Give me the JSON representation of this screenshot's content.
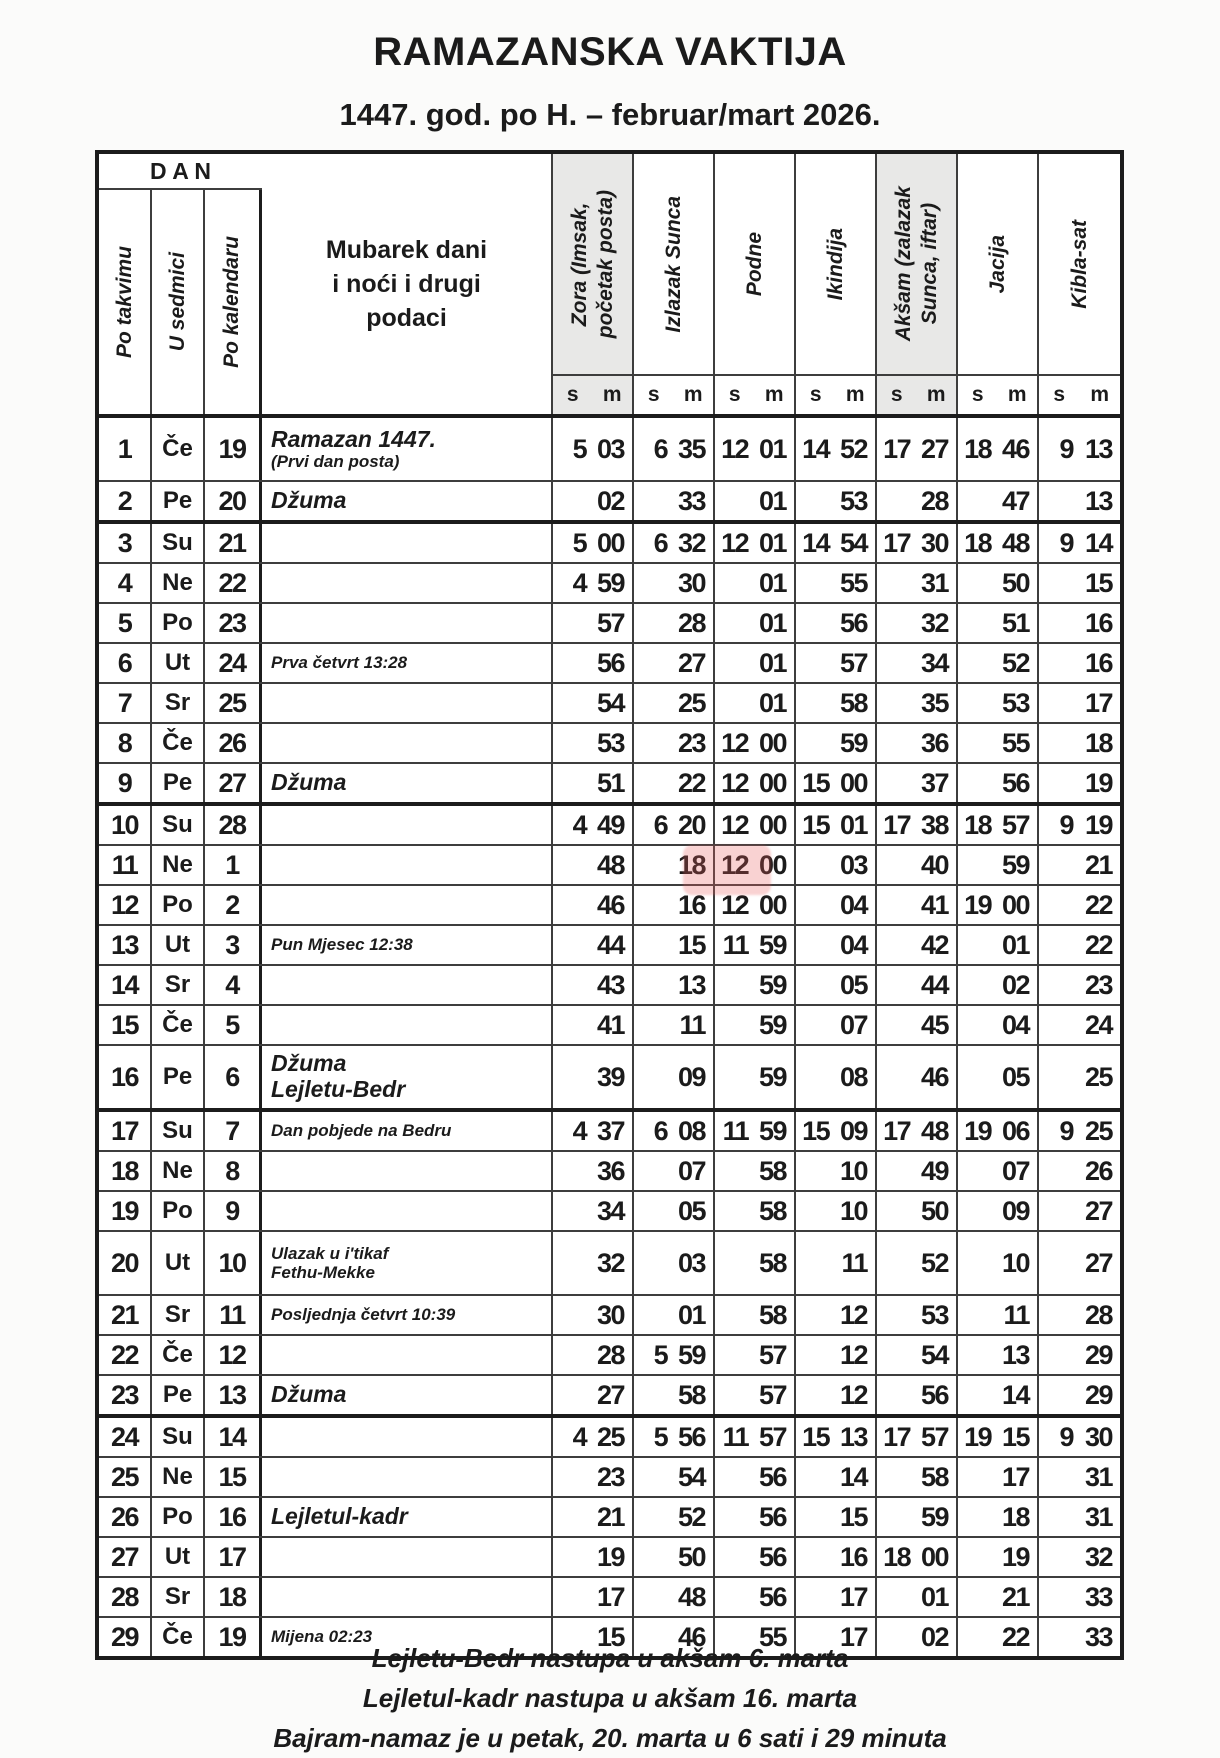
{
  "title": "RAMAZANSKA VAKTIJA",
  "subtitle": "1447. god. po H. – februar/mart 2026.",
  "colors": {
    "shade": "#e8e8e7",
    "border_thin": "#3d3d3d",
    "border_thick": "#1c1c1c",
    "watermark": "rgba(233,94,94,0.28)"
  },
  "table": {
    "dan_header": "D A N",
    "day_cols": [
      "Po takvimu",
      "U sedmici",
      "Po kalendaru"
    ],
    "notes_header": "Mubarek dani\ni noći i drugi\npodaci",
    "time_cols": [
      "Zora (Imsak,\npočetak posta)",
      "Izlazak Sunca",
      "Podne",
      "Ikindija",
      "Akšam (zalazak\nSunca, iftar)",
      "Jacija",
      "Kibla-sat"
    ],
    "shaded_time_cols": [
      0,
      4
    ],
    "sm_labels": [
      "s",
      "m"
    ],
    "rows": [
      {
        "d": "1",
        "wd": "Če",
        "cal": "19",
        "notes": [
          {
            "t": "Ramazan 1447.",
            "s": "nb"
          },
          {
            "t": "(Prvi dan posta)",
            "s": "ns"
          }
        ],
        "times": [
          [
            "5",
            "03"
          ],
          [
            "6",
            "35"
          ],
          [
            "12",
            "01"
          ],
          [
            "14",
            "52"
          ],
          [
            "17",
            "27"
          ],
          [
            "18",
            "46"
          ],
          [
            "9",
            "13"
          ]
        ],
        "tall": true
      },
      {
        "d": "2",
        "wd": "Pe",
        "cal": "20",
        "notes": [
          {
            "t": "Džuma",
            "s": "nb"
          }
        ],
        "times": [
          [
            "",
            "02"
          ],
          [
            "",
            "33"
          ],
          [
            "",
            "01"
          ],
          [
            "",
            "53"
          ],
          [
            "",
            "28"
          ],
          [
            "",
            "47"
          ],
          [
            "",
            "13"
          ]
        ]
      },
      {
        "d": "3",
        "wd": "Su",
        "cal": "21",
        "notes": [],
        "times": [
          [
            "5",
            "00"
          ],
          [
            "6",
            "32"
          ],
          [
            "12",
            "01"
          ],
          [
            "14",
            "54"
          ],
          [
            "17",
            "30"
          ],
          [
            "18",
            "48"
          ],
          [
            "9",
            "14"
          ]
        ],
        "week": true
      },
      {
        "d": "4",
        "wd": "Ne",
        "cal": "22",
        "notes": [],
        "times": [
          [
            "4",
            "59"
          ],
          [
            "",
            "30"
          ],
          [
            "",
            "01"
          ],
          [
            "",
            "55"
          ],
          [
            "",
            "31"
          ],
          [
            "",
            "50"
          ],
          [
            "",
            "15"
          ]
        ]
      },
      {
        "d": "5",
        "wd": "Po",
        "cal": "23",
        "notes": [],
        "times": [
          [
            "",
            "57"
          ],
          [
            "",
            "28"
          ],
          [
            "",
            "01"
          ],
          [
            "",
            "56"
          ],
          [
            "",
            "32"
          ],
          [
            "",
            "51"
          ],
          [
            "",
            "16"
          ]
        ]
      },
      {
        "d": "6",
        "wd": "Ut",
        "cal": "24",
        "notes": [
          {
            "t": "Prva četvrt 13:28",
            "s": "ns"
          }
        ],
        "times": [
          [
            "",
            "56"
          ],
          [
            "",
            "27"
          ],
          [
            "",
            "01"
          ],
          [
            "",
            "57"
          ],
          [
            "",
            "34"
          ],
          [
            "",
            "52"
          ],
          [
            "",
            "16"
          ]
        ]
      },
      {
        "d": "7",
        "wd": "Sr",
        "cal": "25",
        "notes": [],
        "times": [
          [
            "",
            "54"
          ],
          [
            "",
            "25"
          ],
          [
            "",
            "01"
          ],
          [
            "",
            "58"
          ],
          [
            "",
            "35"
          ],
          [
            "",
            "53"
          ],
          [
            "",
            "17"
          ]
        ]
      },
      {
        "d": "8",
        "wd": "Če",
        "cal": "26",
        "notes": [],
        "times": [
          [
            "",
            "53"
          ],
          [
            "",
            "23"
          ],
          [
            "12",
            "00"
          ],
          [
            "",
            "59"
          ],
          [
            "",
            "36"
          ],
          [
            "",
            "55"
          ],
          [
            "",
            "18"
          ]
        ]
      },
      {
        "d": "9",
        "wd": "Pe",
        "cal": "27",
        "notes": [
          {
            "t": "Džuma",
            "s": "nb"
          }
        ],
        "times": [
          [
            "",
            "51"
          ],
          [
            "",
            "22"
          ],
          [
            "12",
            "00"
          ],
          [
            "15",
            "00"
          ],
          [
            "",
            "37"
          ],
          [
            "",
            "56"
          ],
          [
            "",
            "19"
          ]
        ]
      },
      {
        "d": "10",
        "wd": "Su",
        "cal": "28",
        "notes": [],
        "times": [
          [
            "4",
            "49"
          ],
          [
            "6",
            "20"
          ],
          [
            "12",
            "00"
          ],
          [
            "15",
            "01"
          ],
          [
            "17",
            "38"
          ],
          [
            "18",
            "57"
          ],
          [
            "9",
            "19"
          ]
        ],
        "week": true
      },
      {
        "d": "11",
        "wd": "Ne",
        "cal": "1",
        "notes": [],
        "times": [
          [
            "",
            "48"
          ],
          [
            "",
            "18"
          ],
          [
            "12",
            "00"
          ],
          [
            "",
            "03"
          ],
          [
            "",
            "40"
          ],
          [
            "",
            "59"
          ],
          [
            "",
            "21"
          ]
        ]
      },
      {
        "d": "12",
        "wd": "Po",
        "cal": "2",
        "notes": [],
        "times": [
          [
            "",
            "46"
          ],
          [
            "",
            "16"
          ],
          [
            "12",
            "00"
          ],
          [
            "",
            "04"
          ],
          [
            "",
            "41"
          ],
          [
            "19",
            "00"
          ],
          [
            "",
            "22"
          ]
        ]
      },
      {
        "d": "13",
        "wd": "Ut",
        "cal": "3",
        "notes": [
          {
            "t": "Pun Mjesec 12:38",
            "s": "ns"
          }
        ],
        "times": [
          [
            "",
            "44"
          ],
          [
            "",
            "15"
          ],
          [
            "11",
            "59"
          ],
          [
            "",
            "04"
          ],
          [
            "",
            "42"
          ],
          [
            "",
            "01"
          ],
          [
            "",
            "22"
          ]
        ]
      },
      {
        "d": "14",
        "wd": "Sr",
        "cal": "4",
        "notes": [],
        "times": [
          [
            "",
            "43"
          ],
          [
            "",
            "13"
          ],
          [
            "",
            "59"
          ],
          [
            "",
            "05"
          ],
          [
            "",
            "44"
          ],
          [
            "",
            "02"
          ],
          [
            "",
            "23"
          ]
        ]
      },
      {
        "d": "15",
        "wd": "Če",
        "cal": "5",
        "notes": [],
        "times": [
          [
            "",
            "41"
          ],
          [
            "",
            "11"
          ],
          [
            "",
            "59"
          ],
          [
            "",
            "07"
          ],
          [
            "",
            "45"
          ],
          [
            "",
            "04"
          ],
          [
            "",
            "24"
          ]
        ]
      },
      {
        "d": "16",
        "wd": "Pe",
        "cal": "6",
        "notes": [
          {
            "t": "Džuma",
            "s": "nb"
          },
          {
            "t": "Lejletu-Bedr",
            "s": "nb"
          }
        ],
        "times": [
          [
            "",
            "39"
          ],
          [
            "",
            "09"
          ],
          [
            "",
            "59"
          ],
          [
            "",
            "08"
          ],
          [
            "",
            "46"
          ],
          [
            "",
            "05"
          ],
          [
            "",
            "25"
          ]
        ],
        "tall": true
      },
      {
        "d": "17",
        "wd": "Su",
        "cal": "7",
        "notes": [
          {
            "t": "Dan pobjede na Bedru",
            "s": "ns"
          }
        ],
        "times": [
          [
            "4",
            "37"
          ],
          [
            "6",
            "08"
          ],
          [
            "11",
            "59"
          ],
          [
            "15",
            "09"
          ],
          [
            "17",
            "48"
          ],
          [
            "19",
            "06"
          ],
          [
            "9",
            "25"
          ]
        ],
        "week": true
      },
      {
        "d": "18",
        "wd": "Ne",
        "cal": "8",
        "notes": [],
        "times": [
          [
            "",
            "36"
          ],
          [
            "",
            "07"
          ],
          [
            "",
            "58"
          ],
          [
            "",
            "10"
          ],
          [
            "",
            "49"
          ],
          [
            "",
            "07"
          ],
          [
            "",
            "26"
          ]
        ]
      },
      {
        "d": "19",
        "wd": "Po",
        "cal": "9",
        "notes": [],
        "times": [
          [
            "",
            "34"
          ],
          [
            "",
            "05"
          ],
          [
            "",
            "58"
          ],
          [
            "",
            "10"
          ],
          [
            "",
            "50"
          ],
          [
            "",
            "09"
          ],
          [
            "",
            "27"
          ]
        ]
      },
      {
        "d": "20",
        "wd": "Ut",
        "cal": "10",
        "notes": [
          {
            "t": "Ulazak u i'tikaf",
            "s": "ns"
          },
          {
            "t": "Fethu-Mekke",
            "s": "ns"
          }
        ],
        "times": [
          [
            "",
            "32"
          ],
          [
            "",
            "03"
          ],
          [
            "",
            "58"
          ],
          [
            "",
            "11"
          ],
          [
            "",
            "52"
          ],
          [
            "",
            "10"
          ],
          [
            "",
            "27"
          ]
        ],
        "tall": true
      },
      {
        "d": "21",
        "wd": "Sr",
        "cal": "11",
        "notes": [
          {
            "t": "Posljednja četvrt 10:39",
            "s": "ns"
          }
        ],
        "times": [
          [
            "",
            "30"
          ],
          [
            "",
            "01"
          ],
          [
            "",
            "58"
          ],
          [
            "",
            "12"
          ],
          [
            "",
            "53"
          ],
          [
            "",
            "11"
          ],
          [
            "",
            "28"
          ]
        ]
      },
      {
        "d": "22",
        "wd": "Če",
        "cal": "12",
        "notes": [],
        "times": [
          [
            "",
            "28"
          ],
          [
            "5",
            "59"
          ],
          [
            "",
            "57"
          ],
          [
            "",
            "12"
          ],
          [
            "",
            "54"
          ],
          [
            "",
            "13"
          ],
          [
            "",
            "29"
          ]
        ]
      },
      {
        "d": "23",
        "wd": "Pe",
        "cal": "13",
        "notes": [
          {
            "t": "Džuma",
            "s": "nb"
          }
        ],
        "times": [
          [
            "",
            "27"
          ],
          [
            "",
            "58"
          ],
          [
            "",
            "57"
          ],
          [
            "",
            "12"
          ],
          [
            "",
            "56"
          ],
          [
            "",
            "14"
          ],
          [
            "",
            "29"
          ]
        ]
      },
      {
        "d": "24",
        "wd": "Su",
        "cal": "14",
        "notes": [],
        "times": [
          [
            "4",
            "25"
          ],
          [
            "5",
            "56"
          ],
          [
            "11",
            "57"
          ],
          [
            "15",
            "13"
          ],
          [
            "17",
            "57"
          ],
          [
            "19",
            "15"
          ],
          [
            "9",
            "30"
          ]
        ],
        "week": true
      },
      {
        "d": "25",
        "wd": "Ne",
        "cal": "15",
        "notes": [],
        "times": [
          [
            "",
            "23"
          ],
          [
            "",
            "54"
          ],
          [
            "",
            "56"
          ],
          [
            "",
            "14"
          ],
          [
            "",
            "58"
          ],
          [
            "",
            "17"
          ],
          [
            "",
            "31"
          ]
        ]
      },
      {
        "d": "26",
        "wd": "Po",
        "cal": "16",
        "notes": [
          {
            "t": "Lejletul-kadr",
            "s": "nb"
          }
        ],
        "times": [
          [
            "",
            "21"
          ],
          [
            "",
            "52"
          ],
          [
            "",
            "56"
          ],
          [
            "",
            "15"
          ],
          [
            "",
            "59"
          ],
          [
            "",
            "18"
          ],
          [
            "",
            "31"
          ]
        ]
      },
      {
        "d": "27",
        "wd": "Ut",
        "cal": "17",
        "notes": [],
        "times": [
          [
            "",
            "19"
          ],
          [
            "",
            "50"
          ],
          [
            "",
            "56"
          ],
          [
            "",
            "16"
          ],
          [
            "18",
            "00"
          ],
          [
            "",
            "19"
          ],
          [
            "",
            "32"
          ]
        ]
      },
      {
        "d": "28",
        "wd": "Sr",
        "cal": "18",
        "notes": [],
        "times": [
          [
            "",
            "17"
          ],
          [
            "",
            "48"
          ],
          [
            "",
            "56"
          ],
          [
            "",
            "17"
          ],
          [
            "",
            "01"
          ],
          [
            "",
            "21"
          ],
          [
            "",
            "33"
          ]
        ]
      },
      {
        "d": "29",
        "wd": "Če",
        "cal": "19",
        "notes": [
          {
            "t": "Mijena 02:23",
            "s": "ns"
          }
        ],
        "times": [
          [
            "",
            "15"
          ],
          [
            "",
            "46"
          ],
          [
            "",
            "55"
          ],
          [
            "",
            "17"
          ],
          [
            "",
            "02"
          ],
          [
            "",
            "22"
          ],
          [
            "",
            "33"
          ]
        ]
      }
    ]
  },
  "footer": [
    "Lejletu-Bedr nastupa u akšam 6. marta",
    "Lejletul-kadr nastupa u akšam 16. marta",
    "Bajram-namaz je u petak, 20. marta u 6 sati i 29 minuta"
  ]
}
